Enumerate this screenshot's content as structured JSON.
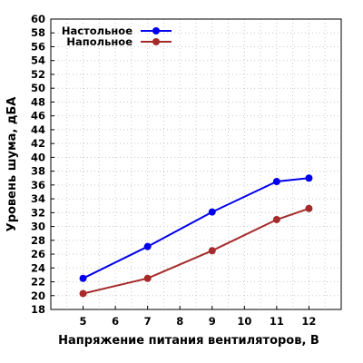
{
  "chart_data": {
    "type": "line",
    "x": [
      5,
      7,
      9,
      11,
      12
    ],
    "x_ticks": [
      5,
      6,
      7,
      8,
      9,
      10,
      11,
      12
    ],
    "xlim": [
      4,
      13
    ],
    "ylim": [
      18,
      60
    ],
    "y_tick_step": 2,
    "xlabel": "Напряжение питания вентиляторов, В",
    "ylabel": "Уровень шума, дБА",
    "grid": true,
    "legend_position": "top-left",
    "series": [
      {
        "name": "Настольное",
        "color": "#0000ee",
        "values": [
          22.5,
          27.1,
          32.1,
          36.5,
          37.0
        ]
      },
      {
        "name": "Напольное",
        "color": "#a52a2a",
        "values": [
          20.3,
          22.5,
          26.5,
          31.0,
          32.6
        ]
      }
    ]
  }
}
